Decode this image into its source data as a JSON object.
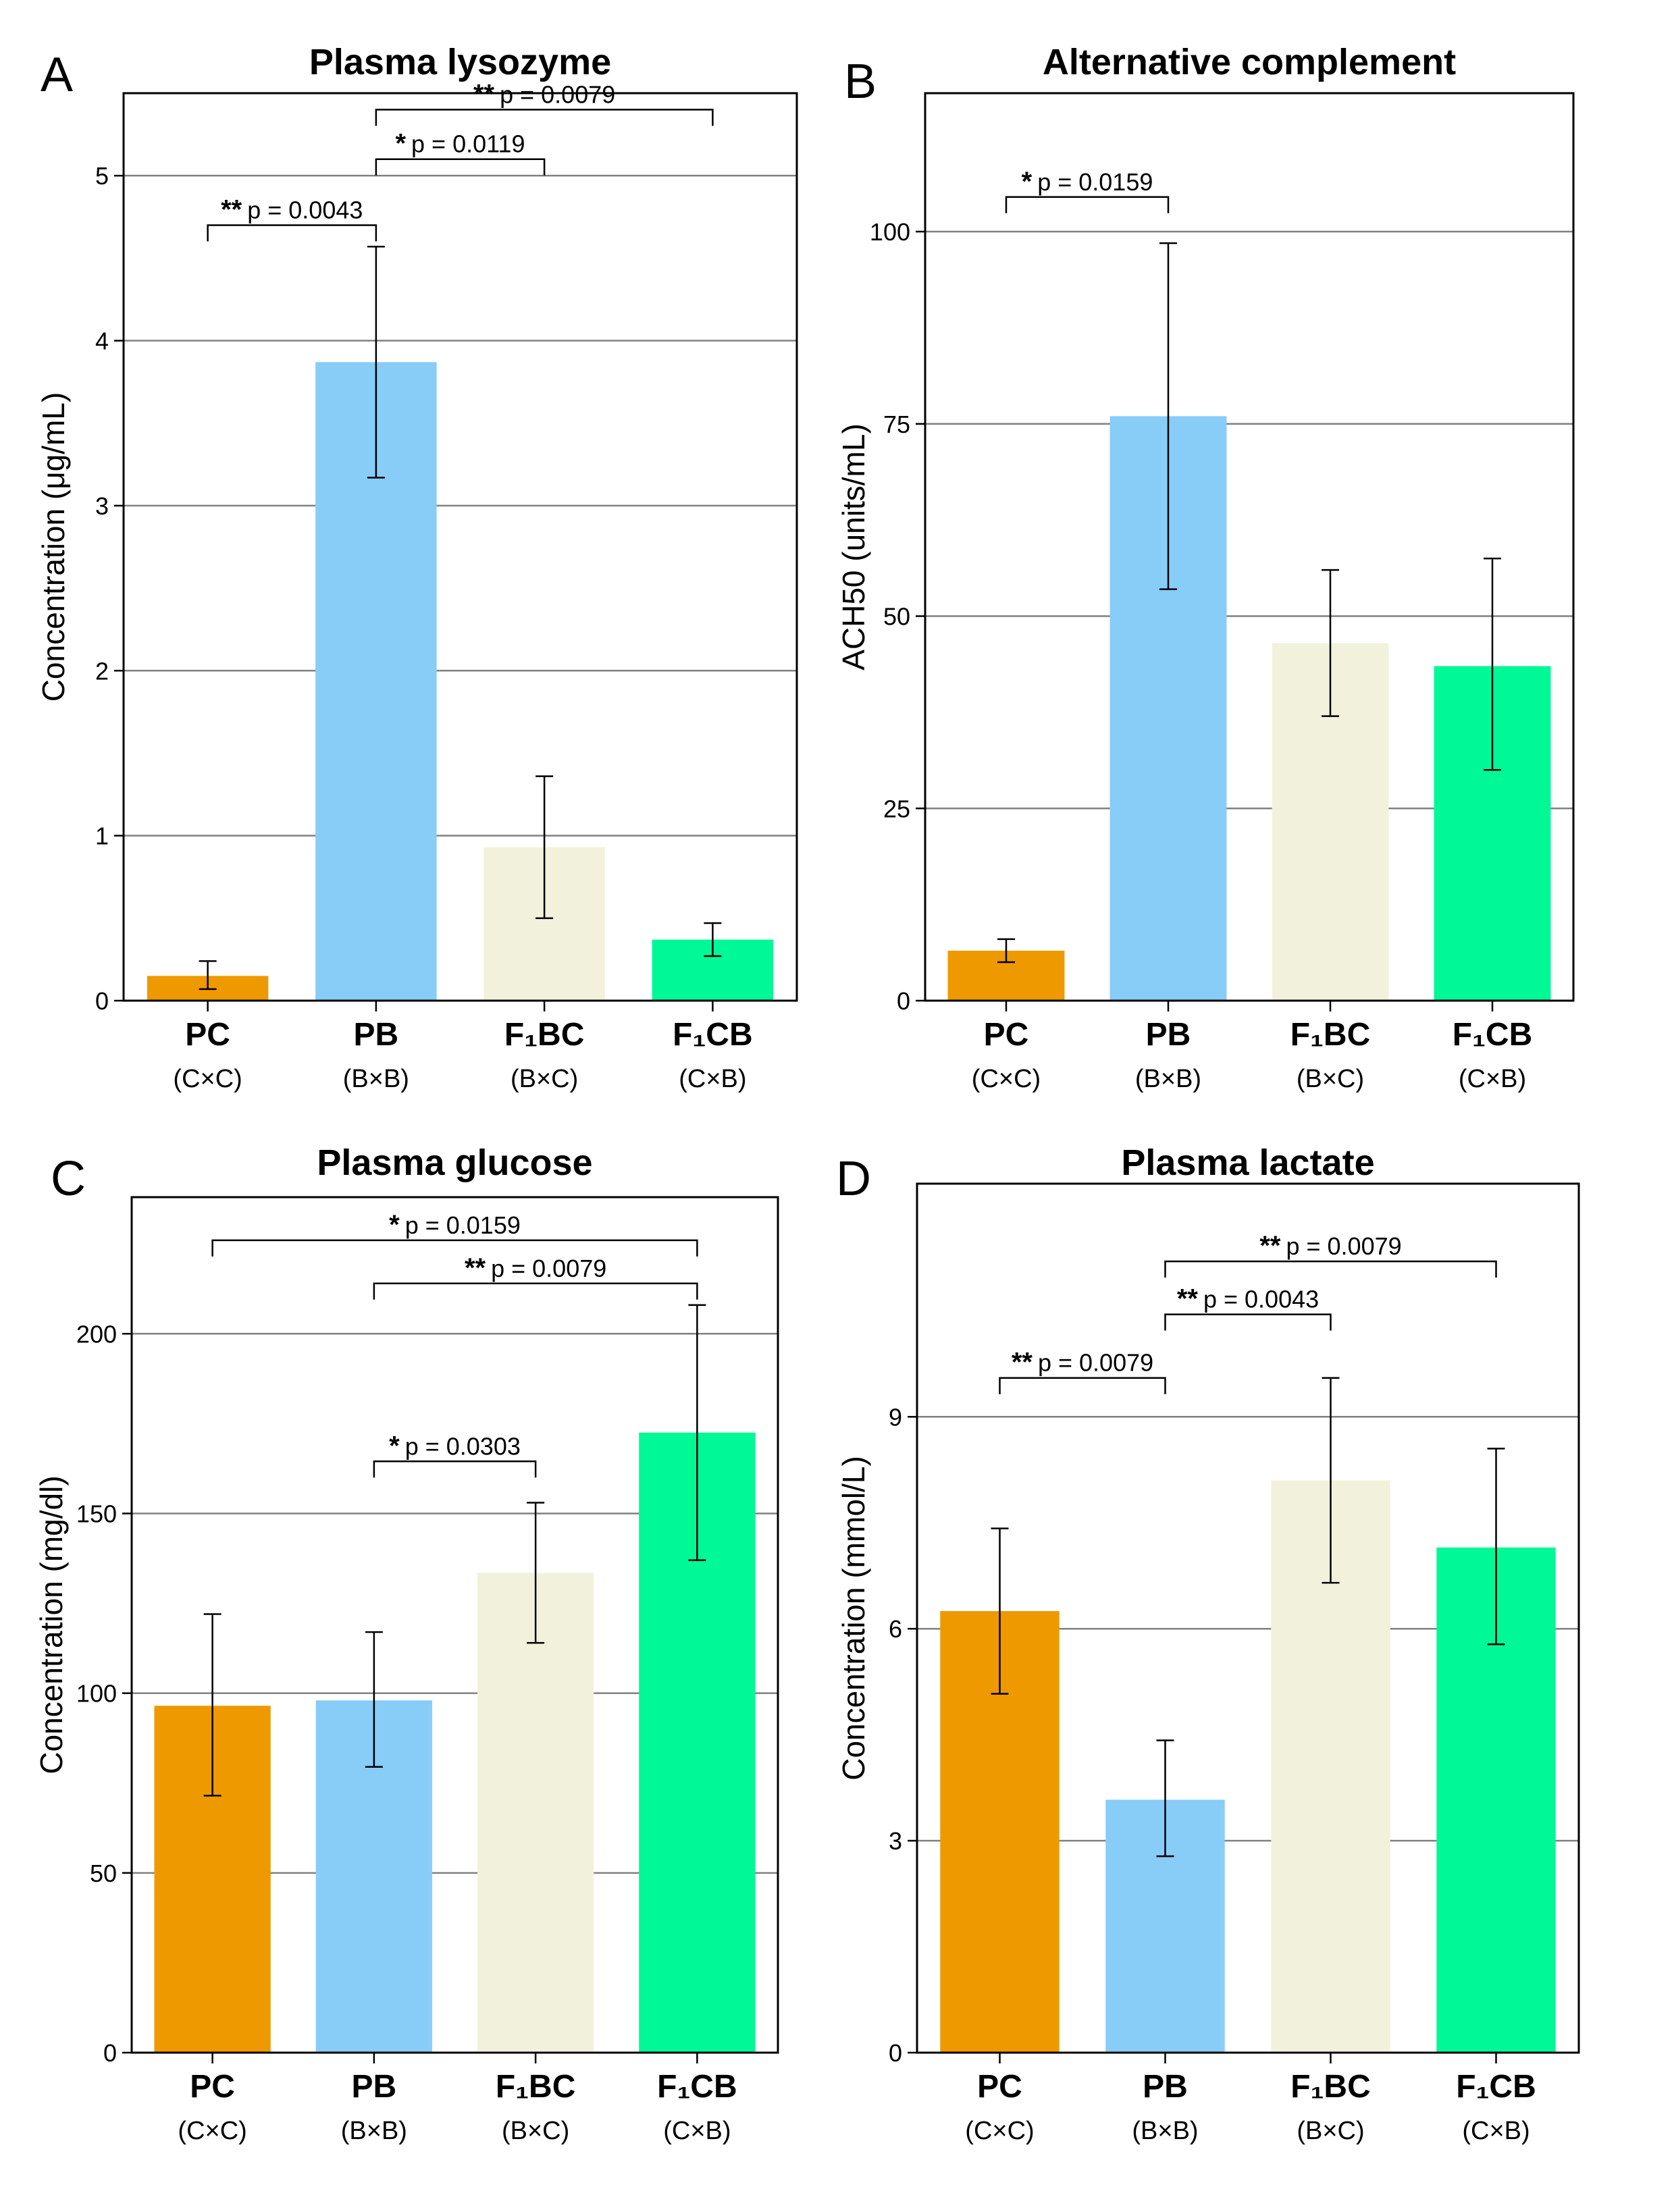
{
  "figure": {
    "colors": [
      "#ee9900",
      "#88ccf8",
      "#f2f2dc",
      "#00f896"
    ],
    "gridColor": "#808080"
  },
  "chart_data": [
    {
      "panel": "A",
      "type": "bar",
      "title": "Plasma lysozyme",
      "ylabel": "Concentration (μg/mL)",
      "ylim": [
        0,
        5.5
      ],
      "yticks": [
        0,
        1,
        2,
        3,
        4,
        5
      ],
      "categories": [
        "PC",
        "PB",
        "F₁BC",
        "F₁CB"
      ],
      "subcategories": [
        "(C×C)",
        "(B×B)",
        "(B×C)",
        "(C×B)"
      ],
      "values": [
        0.15,
        3.87,
        0.93,
        0.37
      ],
      "errors": [
        [
          0.07,
          0.24
        ],
        [
          3.17,
          4.57
        ],
        [
          0.5,
          1.36
        ],
        [
          0.27,
          0.47
        ]
      ],
      "significance": [
        {
          "from": 0,
          "to": 1,
          "stars": "**",
          "label": "p = 0.0043",
          "y": 4.7
        },
        {
          "from": 1,
          "to": 2,
          "stars": "*",
          "label": "p = 0.0119",
          "y": 5.1
        },
        {
          "from": 1,
          "to": 3,
          "stars": "**",
          "label": "p = 0.0079",
          "y": 5.4
        }
      ]
    },
    {
      "panel": "B",
      "type": "bar",
      "title": "Alternative complement",
      "ylabel": "ACH50 (units/mL)",
      "ylim": [
        0,
        118
      ],
      "yticks": [
        0,
        25,
        50,
        75,
        100
      ],
      "categories": [
        "PC",
        "PB",
        "F₁BC",
        "F₁CB"
      ],
      "subcategories": [
        "(C×C)",
        "(B×B)",
        "(B×C)",
        "(C×B)"
      ],
      "values": [
        6.5,
        76,
        46.5,
        43.5
      ],
      "errors": [
        [
          5,
          8
        ],
        [
          53.5,
          98.5
        ],
        [
          37,
          56
        ],
        [
          30,
          57.5
        ]
      ],
      "significance": [
        {
          "from": 0,
          "to": 1,
          "stars": "*",
          "label": "p = 0.0159",
          "y": 104.5
        }
      ]
    },
    {
      "panel": "C",
      "type": "bar",
      "title": "Plasma glucose",
      "ylabel": "Concentration (mg/dl)",
      "ylim": [
        0,
        238
      ],
      "yticks": [
        0,
        50,
        100,
        150,
        200
      ],
      "categories": [
        "PC",
        "PB",
        "F₁BC",
        "F₁CB"
      ],
      "subcategories": [
        "(C×C)",
        "(B×B)",
        "(B×C)",
        "(C×B)"
      ],
      "values": [
        96.5,
        98,
        133.5,
        172.5
      ],
      "errors": [
        [
          71.5,
          122
        ],
        [
          79.5,
          117
        ],
        [
          114,
          153
        ],
        [
          137,
          208
        ]
      ],
      "significance": [
        {
          "from": 1,
          "to": 2,
          "stars": "*",
          "label": "p = 0.0303",
          "y": 164.5
        },
        {
          "from": 1,
          "to": 3,
          "stars": "**",
          "label": "p = 0.0079",
          "y": 214
        },
        {
          "from": 0,
          "to": 3,
          "stars": "*",
          "label": "p = 0.0159",
          "y": 226
        }
      ]
    },
    {
      "panel": "D",
      "type": "bar",
      "title": "Plasma lactate",
      "ylabel": "Concentration (mmol/L)",
      "ylim": [
        0,
        12.3
      ],
      "yticks": [
        0,
        3,
        6,
        9
      ],
      "categories": [
        "PC",
        "PB",
        "F₁BC",
        "F₁CB"
      ],
      "subcategories": [
        "(C×C)",
        "(B×B)",
        "(B×C)",
        "(C×B)"
      ],
      "values": [
        6.25,
        3.58,
        8.1,
        7.15
      ],
      "errors": [
        [
          5.08,
          7.42
        ],
        [
          2.78,
          4.42
        ],
        [
          6.65,
          9.55
        ],
        [
          5.78,
          8.55
        ]
      ],
      "significance": [
        {
          "from": 0,
          "to": 1,
          "stars": "**",
          "label": "p = 0.0079",
          "y": 9.55
        },
        {
          "from": 1,
          "to": 2,
          "stars": "**",
          "label": "p = 0.0043",
          "y": 10.45
        },
        {
          "from": 1,
          "to": 3,
          "stars": "**",
          "label": "p = 0.0079",
          "y": 11.2
        }
      ]
    }
  ]
}
